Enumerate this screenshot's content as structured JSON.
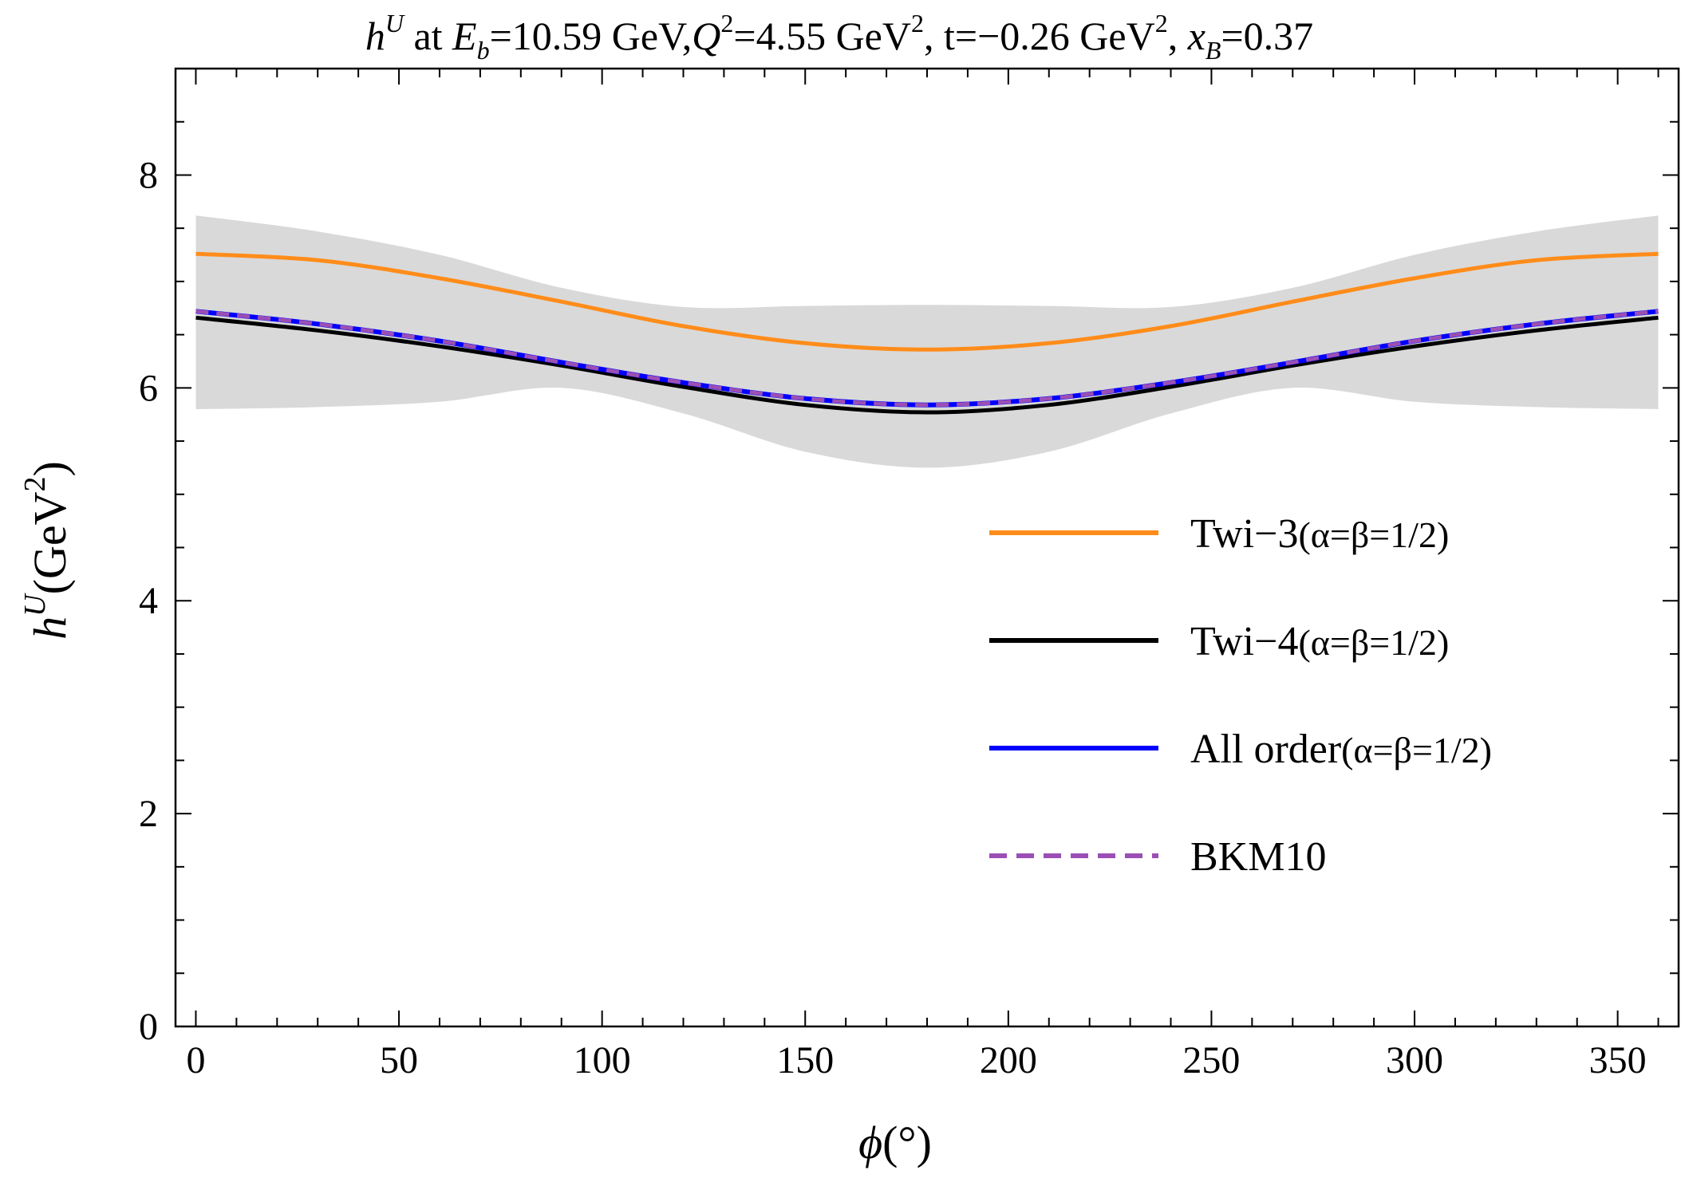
{
  "chart_data": {
    "type": "line",
    "title": {
      "sym": "h",
      "sup": "U",
      "p1": " at ",
      "eb": "E",
      "eb_sub": "b",
      "p2": "=10.59 GeV,",
      "q": "Q",
      "q_sup": "2",
      "p3": "=4.55 GeV",
      "p3_sup": "2",
      "p4": ", t=−0.26 GeV",
      "p4_sup": "2",
      "p5": ", ",
      "x": "x",
      "x_sub": "B",
      "p6": "=0.37"
    },
    "xlabel": {
      "sym": "ϕ",
      "unit": "(°)"
    },
    "ylabel": {
      "sym": "h",
      "sup": "U",
      "unit": "(GeV",
      "unit_sup": "2",
      "unit_close": ")"
    },
    "xlim": [
      -5,
      365
    ],
    "ylim": [
      0,
      9
    ],
    "xticks": [
      0,
      50,
      100,
      150,
      200,
      250,
      300,
      350
    ],
    "xtick_labels": [
      "0",
      "50",
      "100",
      "150",
      "200",
      "250",
      "300",
      "350"
    ],
    "yticks": [
      0,
      2,
      4,
      6,
      8
    ],
    "ytick_labels": [
      "0",
      "2",
      "4",
      "6",
      "8"
    ],
    "grid": false,
    "legend_position": "center-right",
    "band": {
      "x": [
        0,
        30,
        60,
        90,
        120,
        150,
        180,
        210,
        240,
        270,
        300,
        330,
        360
      ],
      "upper": [
        7.62,
        7.47,
        7.25,
        6.94,
        6.76,
        6.77,
        6.78,
        6.77,
        6.76,
        6.94,
        7.25,
        7.47,
        7.62
      ],
      "lower": [
        5.8,
        5.82,
        5.87,
        6.0,
        5.76,
        5.4,
        5.25,
        5.4,
        5.76,
        6.0,
        5.87,
        5.82,
        5.8
      ],
      "color": "#d9d9d9"
    },
    "series": [
      {
        "name": "Twi−3",
        "name_suffix": "(α=β=1/2)",
        "style": "solid",
        "color": "#ff8c1a",
        "x": [
          0,
          30,
          60,
          90,
          120,
          150,
          180,
          210,
          240,
          270,
          300,
          330,
          360
        ],
        "values": [
          7.26,
          7.2,
          7.03,
          6.81,
          6.58,
          6.42,
          6.36,
          6.42,
          6.58,
          6.81,
          7.03,
          7.2,
          7.26
        ]
      },
      {
        "name": "Twi−4",
        "name_suffix": "(α=β=1/2)",
        "style": "solid",
        "color": "#000000",
        "x": [
          0,
          30,
          60,
          90,
          120,
          150,
          180,
          210,
          240,
          270,
          300,
          330,
          360
        ],
        "values": [
          6.66,
          6.54,
          6.39,
          6.21,
          6.01,
          5.84,
          5.77,
          5.84,
          6.01,
          6.21,
          6.39,
          6.54,
          6.66
        ]
      },
      {
        "name": "All order",
        "name_suffix": "(α=β=1/2)",
        "style": "solid",
        "color": "#0000ff",
        "x": [
          0,
          30,
          60,
          90,
          120,
          150,
          180,
          210,
          240,
          270,
          300,
          330,
          360
        ],
        "values": [
          6.72,
          6.6,
          6.44,
          6.24,
          6.05,
          5.9,
          5.84,
          5.9,
          6.05,
          6.24,
          6.44,
          6.6,
          6.72
        ]
      },
      {
        "name": "BKM10",
        "name_suffix": "",
        "style": "dashed",
        "color": "#9b4fb5",
        "x": [
          0,
          30,
          60,
          90,
          120,
          150,
          180,
          210,
          240,
          270,
          300,
          330,
          360
        ],
        "values": [
          6.72,
          6.6,
          6.44,
          6.24,
          6.05,
          5.9,
          5.84,
          5.9,
          6.05,
          6.24,
          6.44,
          6.6,
          6.72
        ]
      }
    ]
  }
}
